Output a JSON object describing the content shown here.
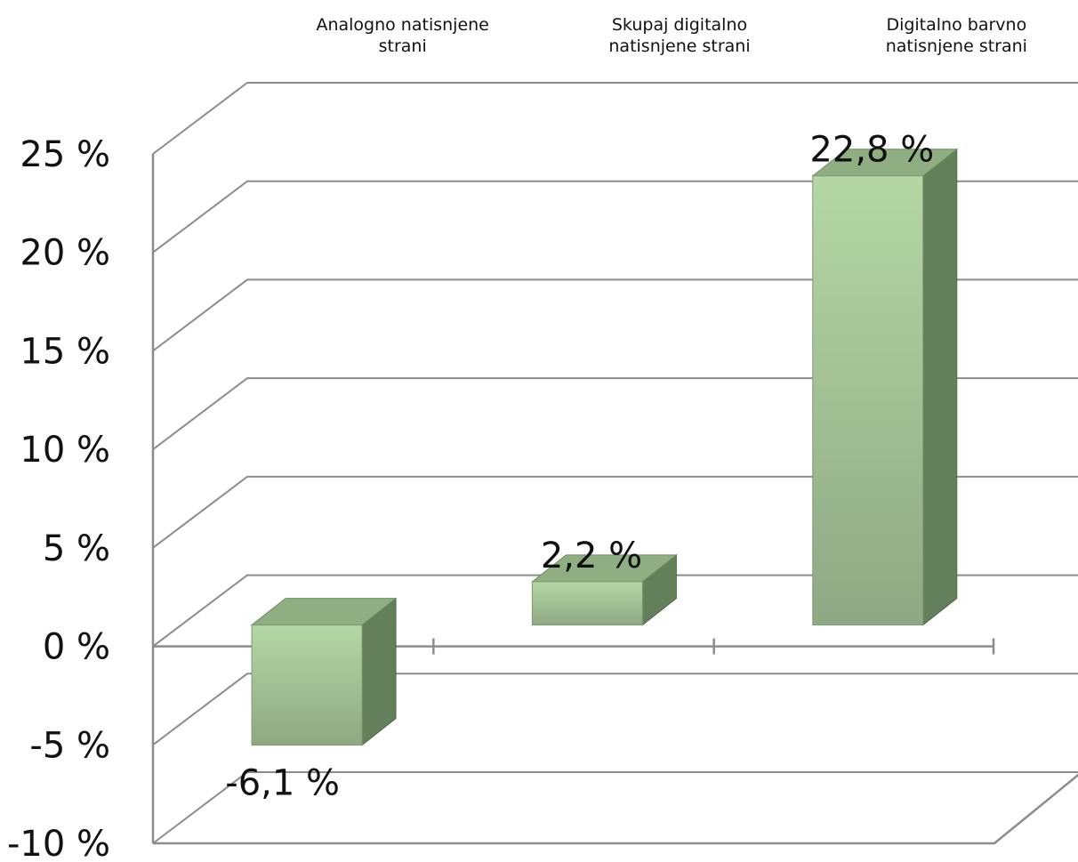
{
  "chart_data": {
    "type": "bar",
    "categories": [
      "Analogno natisnjene strani",
      "Skupaj digitalno natisnjene strani",
      "Digitalno barvno natisnjene strani"
    ],
    "category_lines": [
      [
        "Analogno natisnjene",
        "strani"
      ],
      [
        "Skupaj digitalno",
        "natisnjene strani"
      ],
      [
        "Digitalno barvno",
        "natisnjene strani"
      ]
    ],
    "values": [
      -6.1,
      2.2,
      22.8
    ],
    "data_labels": [
      "-6,1 %",
      "2,2 %",
      "22,8 %"
    ],
    "y_ticks": [
      25,
      20,
      15,
      10,
      5,
      0,
      -5,
      -10
    ],
    "y_tick_labels": [
      "25 %",
      "20 %",
      "15 %",
      "10 %",
      "5 %",
      "0 %",
      "-5 %",
      "-10 %"
    ],
    "ylim": [
      -10,
      25
    ],
    "grid": true,
    "three_d": true,
    "colors": {
      "bar_front_top": "#b4d7a4",
      "bar_front_bottom": "#8fa884",
      "bar_top": "#8fae82",
      "bar_side": "#64805a",
      "grid": "#8c8c8c"
    }
  }
}
